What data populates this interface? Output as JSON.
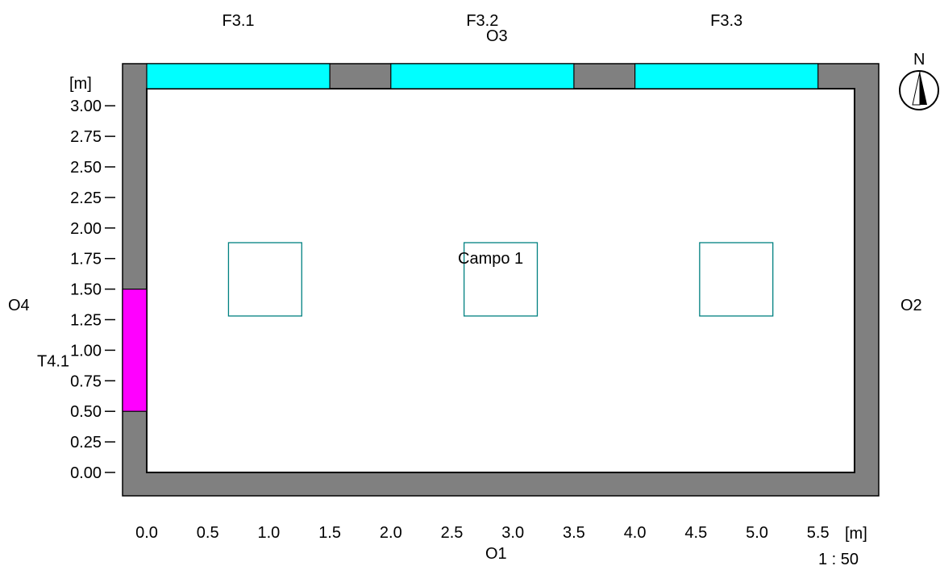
{
  "unit_label": "[m]",
  "scale_label": "1 : 50",
  "north_label": "N",
  "orientation": {
    "south": "O1",
    "east": "O2",
    "north": "O3",
    "west": "O4"
  },
  "room": {
    "width_m": 5.8,
    "depth_m": 3.1,
    "label": "Campo 1"
  },
  "axes": {
    "x": {
      "ticks": [
        "0.0",
        "0.5",
        "1.0",
        "1.5",
        "2.0",
        "2.5",
        "3.0",
        "3.5",
        "4.0",
        "4.5",
        "5.0",
        "5.5"
      ],
      "range": [
        0,
        5.8
      ]
    },
    "y": {
      "ticks": [
        "0.00",
        "0.25",
        "0.50",
        "0.75",
        "1.00",
        "1.25",
        "1.50",
        "1.75",
        "2.00",
        "2.25",
        "2.50",
        "2.75",
        "3.00"
      ],
      "range": [
        0,
        3.1
      ]
    }
  },
  "windows": [
    {
      "label": "F3.1",
      "wall": "north",
      "from_m": 0.0,
      "to_m": 1.5
    },
    {
      "label": "F3.2",
      "wall": "north",
      "from_m": 2.0,
      "to_m": 3.5
    },
    {
      "label": "F3.3",
      "wall": "north",
      "from_m": 4.0,
      "to_m": 5.5
    }
  ],
  "doors": [
    {
      "label": "T4.1",
      "wall": "west",
      "from_m": 0.5,
      "to_m": 1.5
    }
  ],
  "luminaires": [
    {
      "cx_m": 0.97,
      "cy_m": 1.58,
      "size_m": 0.6
    },
    {
      "cx_m": 2.9,
      "cy_m": 1.58,
      "size_m": 0.6
    },
    {
      "cx_m": 4.83,
      "cy_m": 1.58,
      "size_m": 0.6
    }
  ],
  "colors": {
    "wall": "#808080",
    "window": "#00ffff",
    "door": "#ff00ff",
    "luminaire": "#008080",
    "outline": "#000000"
  }
}
